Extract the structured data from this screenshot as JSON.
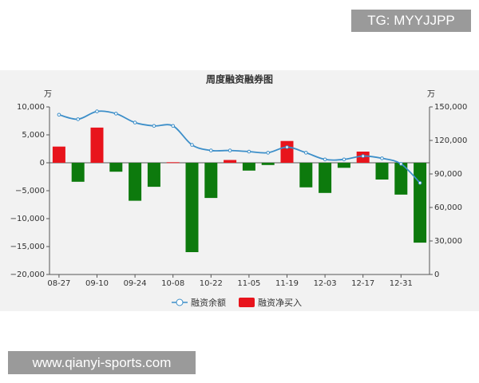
{
  "chart_data": {
    "type": "bar_line",
    "title": "周度融资融券图",
    "ylabel": "万",
    "y2label": "万",
    "categories": [
      "08-27",
      null,
      "09-10",
      null,
      "09-24",
      null,
      "10-08",
      null,
      "10-22",
      null,
      "11-05",
      null,
      "11-19",
      null,
      "12-03",
      null,
      "12-17",
      null,
      "12-31",
      null
    ],
    "series": [
      {
        "name": "融资余额",
        "type": "line",
        "axis": "y2",
        "color": "#3d8fc9",
        "values": [
          143000,
          139000,
          146000,
          144000,
          136000,
          133000,
          133000,
          116000,
          111000,
          111000,
          110000,
          109000,
          114000,
          109000,
          103000,
          103000,
          106000,
          104000,
          99000,
          82000
        ]
      },
      {
        "name": "融资净买入",
        "type": "bar",
        "color": "#e8141c",
        "negative_color": "#0d7a0d",
        "values": [
          2900,
          -3400,
          6300,
          -1600,
          -6800,
          -4300,
          100,
          -16000,
          -6300,
          500,
          -1400,
          -400,
          3900,
          -4400,
          -5400,
          -900,
          2000,
          -3000,
          -5700,
          -14300
        ]
      }
    ],
    "ylim": [
      -20000,
      10000
    ],
    "yticks": [
      {
        "value": 10000,
        "label": "10,000"
      },
      {
        "value": 5000,
        "label": "5,000"
      },
      0,
      {
        "value": -5000,
        "label": "−5,000"
      },
      {
        "value": -10000,
        "label": "−10,000"
      },
      {
        "value": -15000,
        "label": "−15,000"
      },
      {
        "value": -20000,
        "label": "−20,000"
      }
    ],
    "y2lim": [
      0,
      150000
    ],
    "y2ticks": [
      {
        "value": 150000,
        "label": "150,000"
      },
      {
        "value": 120000,
        "label": "120,000"
      },
      {
        "value": 90000,
        "label": "90,000"
      },
      {
        "value": 60000,
        "label": "60,000"
      },
      {
        "value": 30000,
        "label": "30,000"
      },
      0
    ]
  },
  "overlay": {
    "top": "TG: MYYJJPP",
    "bottom": "www.qianyi-sports.com"
  }
}
